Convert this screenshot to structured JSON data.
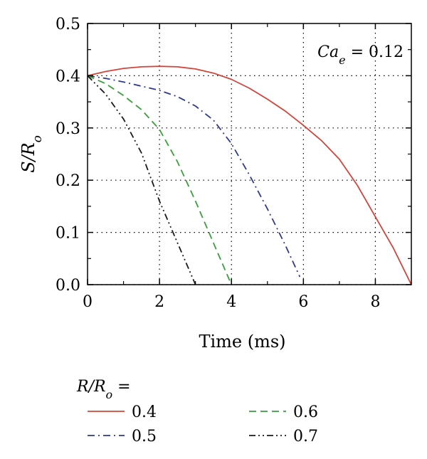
{
  "chart_data": {
    "type": "line",
    "xlabel": "Time (ms)",
    "ylabel": "S/Ro",
    "xlim": [
      0,
      9
    ],
    "ylim": [
      0,
      0.5
    ],
    "x_ticks": [
      0,
      2,
      4,
      6,
      8
    ],
    "x_tick_labels": [
      "0",
      "2",
      "4",
      "6",
      "8"
    ],
    "y_ticks": [
      0.0,
      0.1,
      0.2,
      0.3,
      0.4,
      0.5
    ],
    "y_tick_labels": [
      "0.0",
      "0.1",
      "0.2",
      "0.3",
      "0.4",
      "0.5"
    ],
    "grid": true,
    "annotation": "Ca_e = 0.12",
    "legend_title": "R/Ro =",
    "legend_position": "below",
    "series": [
      {
        "name": "0.4",
        "color": "#d2453a",
        "style": "solid",
        "x": [
          0,
          0.5,
          1,
          1.5,
          2,
          2.5,
          3,
          3.5,
          4,
          4.5,
          5,
          5.5,
          6,
          6.5,
          7,
          7.5,
          8,
          8.5,
          9
        ],
        "y": [
          0.4,
          0.408,
          0.414,
          0.417,
          0.418,
          0.417,
          0.413,
          0.405,
          0.393,
          0.376,
          0.355,
          0.332,
          0.305,
          0.276,
          0.24,
          0.19,
          0.13,
          0.07,
          0.0
        ]
      },
      {
        "name": "0.5",
        "color": "#2f3a8f",
        "style": "dashdot",
        "x": [
          0,
          0.5,
          1,
          1.5,
          2,
          2.5,
          3,
          3.5,
          4,
          4.5,
          5,
          5.5,
          5.9
        ],
        "y": [
          0.4,
          0.395,
          0.388,
          0.38,
          0.372,
          0.36,
          0.342,
          0.315,
          0.27,
          0.21,
          0.145,
          0.075,
          0.015
        ]
      },
      {
        "name": "0.6",
        "color": "#3a9e3a",
        "style": "dashed",
        "x": [
          0,
          0.5,
          1,
          1.5,
          2,
          2.5,
          3,
          3.5,
          4
        ],
        "y": [
          0.4,
          0.385,
          0.362,
          0.335,
          0.297,
          0.235,
          0.16,
          0.08,
          0.0
        ]
      },
      {
        "name": "0.7",
        "color": "#1a1a1a",
        "style": "dashdotdot",
        "x": [
          0,
          0.5,
          1,
          1.5,
          2,
          2.5,
          3
        ],
        "y": [
          0.4,
          0.365,
          0.317,
          0.252,
          0.16,
          0.08,
          0.0
        ]
      }
    ]
  }
}
